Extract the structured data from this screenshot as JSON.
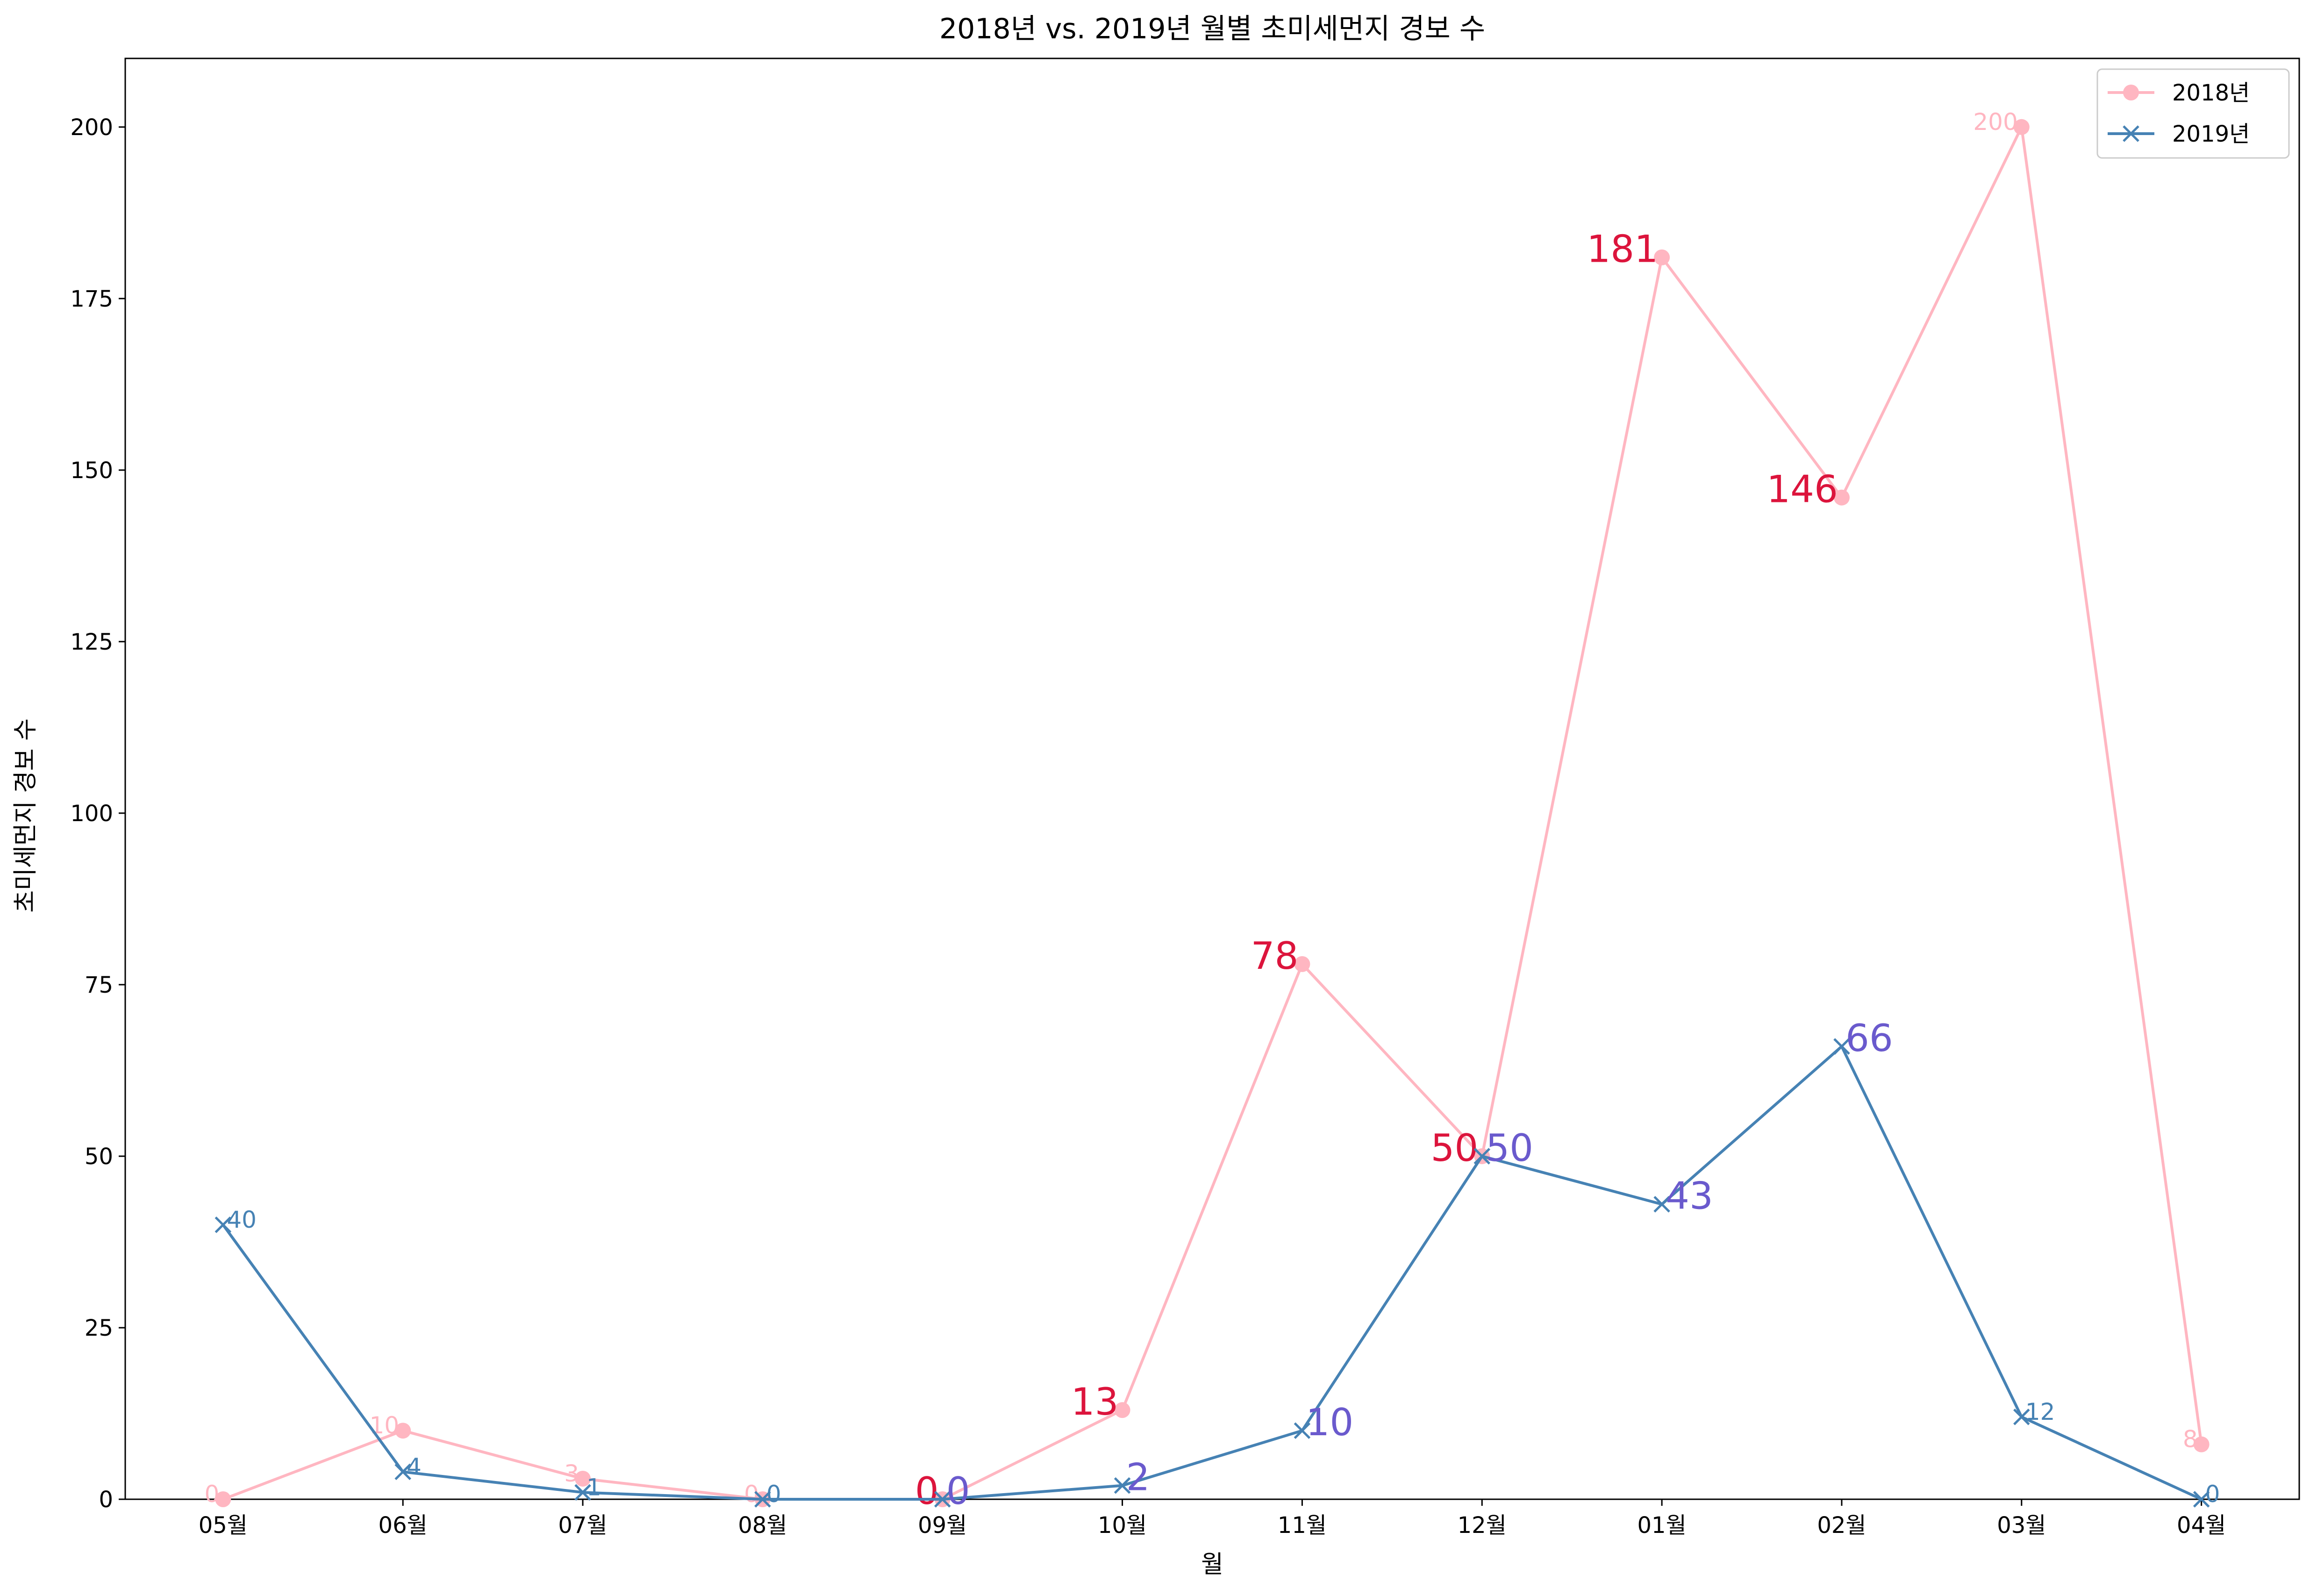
{
  "chart_data": {
    "type": "line",
    "title": "2018년 vs. 2019년 월별 초미세먼지 경보 수",
    "xlabel": "월",
    "ylabel": "초미세먼지 경보 수",
    "categories": [
      "05월",
      "06월",
      "07월",
      "08월",
      "09월",
      "10월",
      "11월",
      "12월",
      "01월",
      "02월",
      "03월",
      "04월"
    ],
    "ylim": [
      0,
      210
    ],
    "yticks": [
      0,
      25,
      50,
      75,
      100,
      125,
      150,
      175,
      200
    ],
    "grid": false,
    "legend_position": "top-right",
    "series": [
      {
        "name": "2018년",
        "color": "#FFB6C1",
        "marker": "circle",
        "values": [
          0,
          10,
          3,
          0,
          0,
          13,
          78,
          50,
          181,
          146,
          200,
          8
        ],
        "label_colors": [
          "#FFB6C1",
          "#FFB6C1",
          "#FFB6C1",
          "#FFB6C1",
          "#DC143C",
          "#DC143C",
          "#DC143C",
          "#DC143C",
          "#DC143C",
          "#DC143C",
          "#FFB6C1",
          "#FFB6C1"
        ],
        "label_emphasis": [
          false,
          false,
          false,
          false,
          true,
          true,
          true,
          true,
          true,
          true,
          false,
          false
        ]
      },
      {
        "name": "2019년",
        "color": "#4682B4",
        "marker": "x",
        "values": [
          40,
          4,
          1,
          0,
          0,
          2,
          10,
          50,
          43,
          66,
          12,
          0
        ],
        "label_colors": [
          "#4682B4",
          "#4682B4",
          "#4682B4",
          "#4682B4",
          "#6A5ACD",
          "#6A5ACD",
          "#6A5ACD",
          "#6A5ACD",
          "#6A5ACD",
          "#6A5ACD",
          "#4682B4",
          "#4682B4"
        ],
        "label_emphasis": [
          false,
          false,
          false,
          false,
          true,
          true,
          true,
          true,
          true,
          true,
          false,
          false
        ]
      }
    ]
  }
}
